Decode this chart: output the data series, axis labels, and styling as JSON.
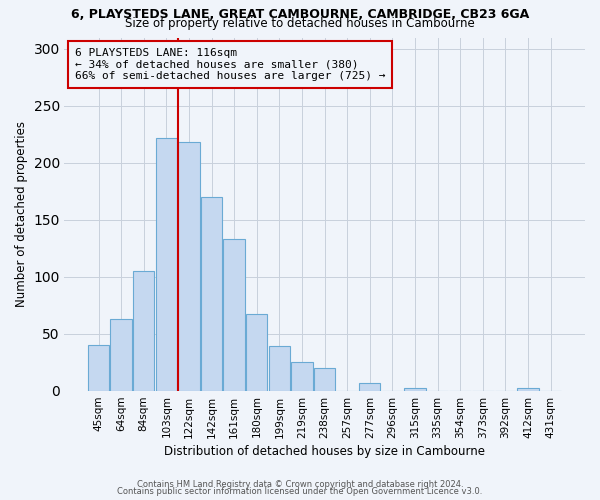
{
  "title1": "6, PLAYSTEDS LANE, GREAT CAMBOURNE, CAMBRIDGE, CB23 6GA",
  "title2": "Size of property relative to detached houses in Cambourne",
  "xlabel": "Distribution of detached houses by size in Cambourne",
  "ylabel": "Number of detached properties",
  "bar_labels": [
    "45sqm",
    "64sqm",
    "84sqm",
    "103sqm",
    "122sqm",
    "142sqm",
    "161sqm",
    "180sqm",
    "199sqm",
    "219sqm",
    "238sqm",
    "257sqm",
    "277sqm",
    "296sqm",
    "315sqm",
    "335sqm",
    "354sqm",
    "373sqm",
    "392sqm",
    "412sqm",
    "431sqm"
  ],
  "bar_values": [
    40,
    63,
    105,
    222,
    218,
    170,
    133,
    67,
    39,
    25,
    20,
    0,
    7,
    0,
    2,
    0,
    0,
    0,
    0,
    2,
    0
  ],
  "bar_color": "#c5d8f0",
  "bar_edge_color": "#6aaad4",
  "bar_width": 0.95,
  "vline_x": 3.5,
  "vline_color": "#cc0000",
  "annotation_title": "6 PLAYSTEDS LANE: 116sqm",
  "annotation_line1": "← 34% of detached houses are smaller (380)",
  "annotation_line2": "66% of semi-detached houses are larger (725) →",
  "annotation_box_color": "#cc0000",
  "ylim": [
    0,
    310
  ],
  "yticks": [
    0,
    50,
    100,
    150,
    200,
    250,
    300
  ],
  "footer1": "Contains HM Land Registry data © Crown copyright and database right 2024.",
  "footer2": "Contains public sector information licensed under the Open Government Licence v3.0.",
  "bg_color": "#f0f4fa",
  "grid_color": "#c8d0dc"
}
